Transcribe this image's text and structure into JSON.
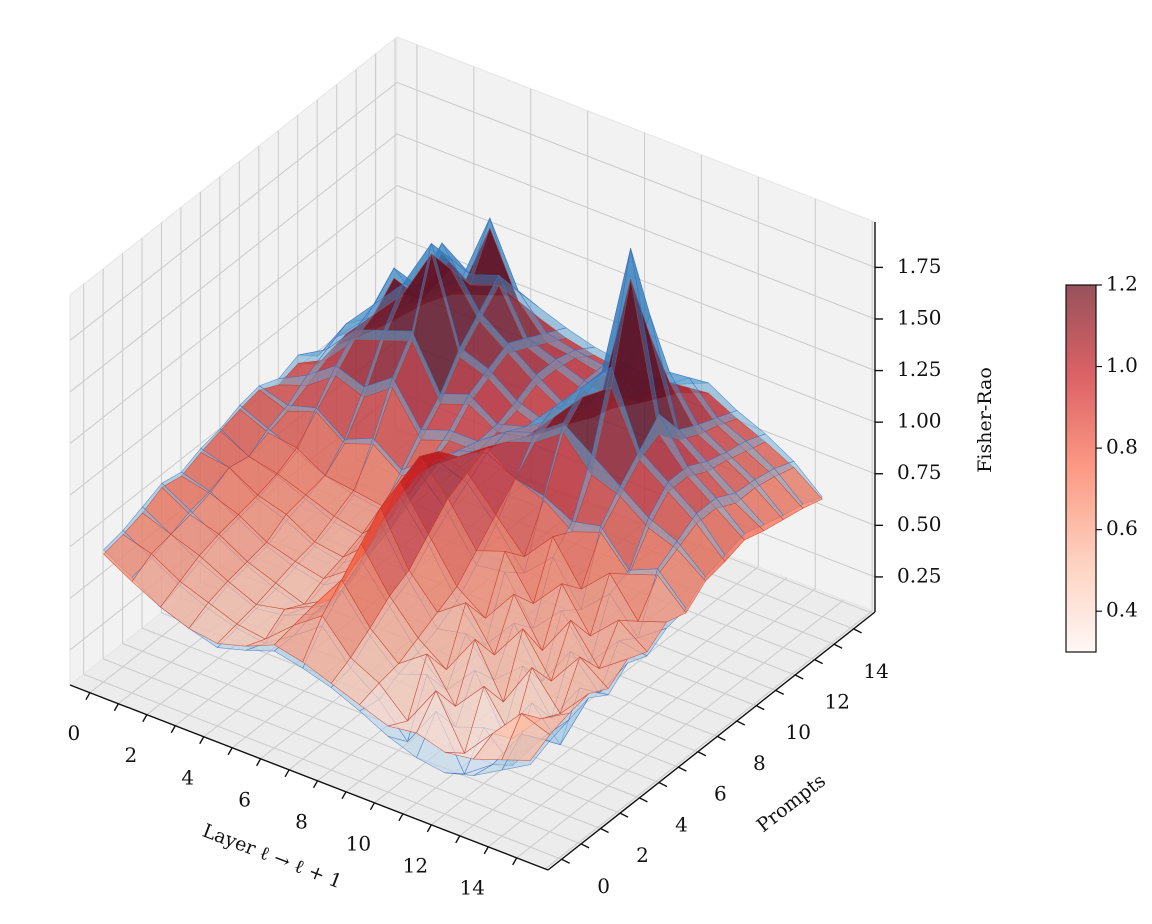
{
  "chart_data": {
    "type": "surface3d",
    "xlabel": "Layer ℓ → ℓ + 1",
    "ylabel": "Prompts",
    "zlabel": "Fisher-Rao",
    "x_ticks": [
      0,
      2,
      4,
      6,
      8,
      10,
      12,
      14
    ],
    "y_ticks": [
      0,
      2,
      4,
      6,
      8,
      10,
      12,
      14
    ],
    "z_ticks": [
      "0.25",
      "0.50",
      "0.75",
      "1.00",
      "1.25",
      "1.50",
      "1.75"
    ],
    "xlim": [
      -0.7,
      16.1
    ],
    "ylim": [
      -0.7,
      16.1
    ],
    "zlim": [
      0.08,
      1.97
    ],
    "grid": true,
    "x": [
      0,
      1,
      2,
      3,
      4,
      5,
      6,
      7,
      8,
      9,
      10,
      11,
      12,
      13,
      14,
      15
    ],
    "y": [
      0,
      1,
      2,
      3,
      4,
      5,
      6,
      7,
      8,
      9,
      10,
      11,
      12,
      13,
      14,
      15
    ],
    "series": [
      {
        "colormap": "Blues",
        "edge_color": "#3a6fc0",
        "z_by_prompt": [
          [
            0.72,
            0.64,
            0.55,
            0.5,
            0.46,
            0.5,
            0.55,
            0.52,
            0.48,
            0.42,
            0.35,
            0.3,
            0.28,
            0.32,
            0.4,
            0.48
          ],
          [
            0.74,
            0.66,
            0.58,
            0.52,
            0.48,
            0.46,
            0.55,
            0.65,
            0.5,
            0.4,
            0.25,
            0.45,
            0.2,
            0.3,
            0.5,
            0.52
          ],
          [
            0.78,
            0.7,
            0.62,
            0.56,
            0.5,
            0.52,
            0.58,
            0.75,
            0.58,
            0.45,
            0.5,
            0.3,
            0.35,
            0.22,
            0.4,
            0.55
          ],
          [
            0.82,
            0.74,
            0.66,
            0.58,
            0.52,
            0.48,
            0.55,
            0.82,
            0.65,
            0.48,
            0.35,
            0.5,
            0.25,
            0.45,
            0.3,
            0.58
          ],
          [
            0.8,
            0.76,
            0.68,
            0.6,
            0.55,
            0.52,
            0.6,
            0.92,
            0.7,
            0.52,
            0.55,
            0.38,
            0.5,
            0.3,
            0.5,
            0.52
          ],
          [
            0.84,
            0.8,
            0.7,
            0.65,
            0.58,
            0.55,
            0.66,
            0.98,
            0.8,
            0.58,
            0.42,
            0.58,
            0.35,
            0.55,
            0.4,
            0.6
          ],
          [
            0.86,
            0.78,
            0.74,
            0.68,
            0.62,
            0.6,
            0.7,
            1.02,
            0.88,
            0.68,
            0.7,
            0.48,
            0.62,
            0.42,
            0.58,
            0.56
          ],
          [
            0.9,
            0.84,
            0.78,
            0.72,
            0.68,
            0.66,
            0.76,
            1.0,
            0.95,
            0.8,
            0.62,
            0.75,
            0.55,
            0.68,
            0.52,
            0.62
          ],
          [
            0.92,
            0.88,
            0.92,
            0.82,
            0.88,
            0.78,
            0.88,
            0.98,
            1.02,
            0.95,
            0.92,
            0.85,
            0.88,
            0.72,
            0.78,
            0.64
          ],
          [
            0.88,
            0.95,
            1.05,
            1.0,
            1.1,
            0.9,
            0.95,
            0.95,
            1.05,
            1.1,
            1.2,
            1.1,
            1.0,
            0.9,
            0.84,
            0.72
          ],
          [
            0.92,
            1.0,
            1.15,
            1.2,
            1.25,
            1.0,
            1.05,
            0.96,
            1.0,
            1.15,
            1.3,
            1.45,
            1.1,
            1.0,
            0.9,
            0.75
          ],
          [
            0.84,
            1.05,
            1.2,
            1.35,
            1.6,
            1.15,
            1.1,
            1.0,
            0.95,
            1.05,
            1.3,
            1.95,
            1.2,
            1.0,
            0.9,
            0.78
          ],
          [
            0.86,
            1.0,
            1.3,
            1.25,
            1.45,
            1.25,
            1.15,
            1.05,
            0.96,
            1.0,
            1.2,
            1.55,
            1.05,
            0.95,
            0.85,
            0.75
          ],
          [
            0.82,
            0.95,
            1.1,
            1.4,
            1.3,
            1.35,
            1.1,
            1.05,
            1.0,
            0.96,
            1.05,
            1.2,
            1.0,
            0.92,
            0.84,
            0.72
          ],
          [
            0.78,
            0.92,
            1.05,
            1.15,
            1.5,
            1.2,
            1.05,
            1.02,
            1.0,
            0.95,
            1.0,
            1.1,
            0.96,
            0.9,
            0.82,
            0.7
          ],
          [
            0.75,
            0.88,
            1.0,
            1.05,
            1.1,
            1.05,
            1.0,
            0.96,
            0.94,
            0.92,
            0.94,
            1.0,
            0.92,
            0.86,
            0.78,
            0.66
          ]
        ]
      },
      {
        "colormap": "Reds",
        "edge_color": "#c0392b",
        "z_by_prompt": [
          [
            0.7,
            0.62,
            0.55,
            0.5,
            0.48,
            0.52,
            0.58,
            0.55,
            0.5,
            0.45,
            0.4,
            0.42,
            0.38,
            0.4,
            0.45,
            0.5
          ],
          [
            0.72,
            0.68,
            0.6,
            0.55,
            0.5,
            0.48,
            0.6,
            0.7,
            0.55,
            0.48,
            0.35,
            0.55,
            0.3,
            0.45,
            0.6,
            0.55
          ],
          [
            0.75,
            0.7,
            0.65,
            0.58,
            0.52,
            0.55,
            0.62,
            0.8,
            0.62,
            0.5,
            0.6,
            0.4,
            0.55,
            0.35,
            0.5,
            0.58
          ],
          [
            0.8,
            0.72,
            0.68,
            0.6,
            0.55,
            0.5,
            0.58,
            0.9,
            0.7,
            0.55,
            0.45,
            0.65,
            0.4,
            0.62,
            0.45,
            0.6
          ],
          [
            0.78,
            0.75,
            0.7,
            0.62,
            0.58,
            0.55,
            0.65,
            1.0,
            0.75,
            0.6,
            0.7,
            0.5,
            0.68,
            0.48,
            0.65,
            0.55
          ],
          [
            0.82,
            0.8,
            0.72,
            0.68,
            0.6,
            0.58,
            0.7,
            1.05,
            0.85,
            0.65,
            0.55,
            0.72,
            0.5,
            0.7,
            0.52,
            0.62
          ],
          [
            0.85,
            0.78,
            0.75,
            0.7,
            0.65,
            0.62,
            0.75,
            1.1,
            0.95,
            0.75,
            0.8,
            0.6,
            0.75,
            0.55,
            0.68,
            0.58
          ],
          [
            0.88,
            0.82,
            0.8,
            0.72,
            0.7,
            0.68,
            0.8,
            1.05,
            1.0,
            0.85,
            0.7,
            0.85,
            0.65,
            0.78,
            0.6,
            0.65
          ],
          [
            0.9,
            0.85,
            0.9,
            0.8,
            0.85,
            0.75,
            0.85,
            0.95,
            1.05,
            0.95,
            0.9,
            0.8,
            0.85,
            0.7,
            0.75,
            0.62
          ],
          [
            0.85,
            0.9,
            1.0,
            0.95,
            1.05,
            0.85,
            0.9,
            0.9,
            1.0,
            1.05,
            1.15,
            1.0,
            0.95,
            0.85,
            0.8,
            0.7
          ],
          [
            0.88,
            0.95,
            1.1,
            1.15,
            1.2,
            0.95,
            1.0,
            0.92,
            0.95,
            1.1,
            1.25,
            1.35,
            1.05,
            0.95,
            0.85,
            0.72
          ],
          [
            0.8,
            1.0,
            1.15,
            1.3,
            1.55,
            1.1,
            1.05,
            0.95,
            0.9,
            1.0,
            1.2,
            1.8,
            1.1,
            0.95,
            0.85,
            0.75
          ],
          [
            0.82,
            0.95,
            1.25,
            1.2,
            1.4,
            1.2,
            1.1,
            1.0,
            0.92,
            0.95,
            1.1,
            1.45,
            1.0,
            0.9,
            0.8,
            0.72
          ],
          [
            0.78,
            0.9,
            1.05,
            1.35,
            1.25,
            1.3,
            1.05,
            1.0,
            0.95,
            0.92,
            1.0,
            1.15,
            0.95,
            0.88,
            0.8,
            0.7
          ],
          [
            0.75,
            0.88,
            1.0,
            1.1,
            1.45,
            1.15,
            1.0,
            0.98,
            0.95,
            0.9,
            0.95,
            1.05,
            0.92,
            0.85,
            0.78,
            0.68
          ],
          [
            0.72,
            0.85,
            0.95,
            1.0,
            1.05,
            1.0,
            0.95,
            0.92,
            0.9,
            0.88,
            0.9,
            0.95,
            0.88,
            0.82,
            0.75,
            0.65
          ]
        ]
      }
    ],
    "colorbar": {
      "colormap": "Reds",
      "range": [
        0.3,
        1.2
      ],
      "ticks": [
        "0.4",
        "0.6",
        "0.8",
        "1.0",
        "1.2"
      ]
    }
  }
}
